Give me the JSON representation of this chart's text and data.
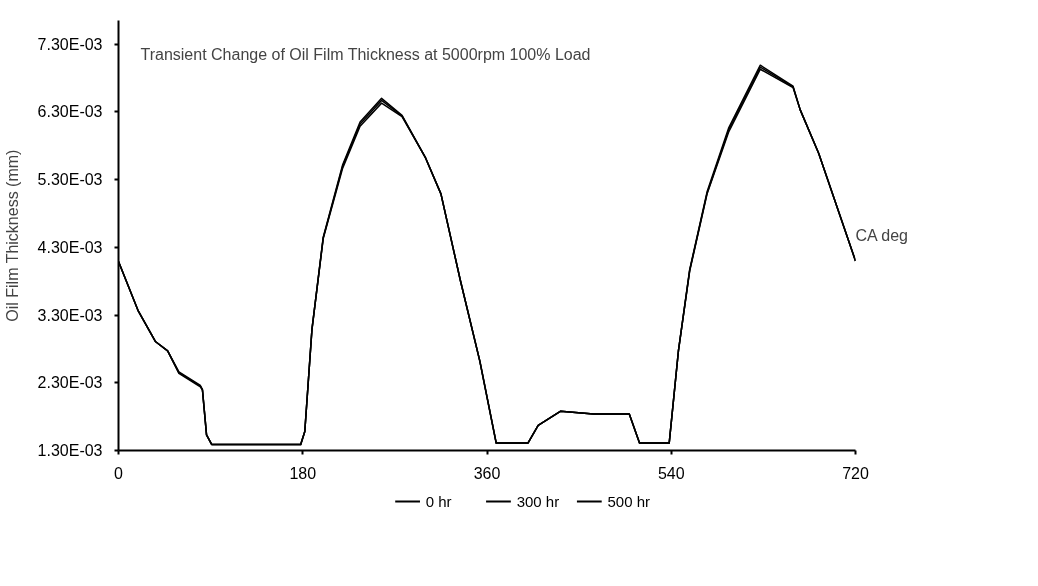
{
  "chart_data": {
    "type": "line",
    "title": "Transient Change of Oil Film Thickness at 5000rpm 100% Load",
    "xlabel": "CA deg",
    "ylabel": "Oil Film Thickness (mm)",
    "xlim": [
      0,
      720
    ],
    "xticks": [
      0,
      180,
      360,
      540,
      720
    ],
    "ylim": [
      0.0013,
      0.00765
    ],
    "yticks": [
      {
        "value": 0.0013,
        "label": "1.30E-03"
      },
      {
        "value": 0.0023,
        "label": "2.30E-03"
      },
      {
        "value": 0.0033,
        "label": "3.30E-03"
      },
      {
        "value": 0.0043,
        "label": "4.30E-03"
      },
      {
        "value": 0.0053,
        "label": "5.30E-03"
      },
      {
        "value": 0.0063,
        "label": "6.30E-03"
      },
      {
        "value": 0.0073,
        "label": "7.30E-03"
      }
    ],
    "grid": false,
    "legend": "bottom",
    "marker": "none",
    "line_style": "solid",
    "x": [
      0,
      19,
      36,
      48,
      59,
      80,
      82,
      86,
      91,
      178,
      182,
      189,
      200,
      219,
      236,
      257,
      277,
      300,
      315,
      334,
      353,
      369,
      400,
      410,
      432,
      464,
      499,
      509,
      538,
      547,
      558,
      575,
      596,
      627,
      659,
      666,
      684,
      720
    ],
    "series": [
      {
        "name": "0 hr",
        "color": "#000000",
        "values": [
          0.00409,
          0.00337,
          0.00291,
          0.00277,
          0.00246,
          0.00226,
          0.0022,
          0.00153,
          0.00139,
          0.00139,
          0.00158,
          0.00309,
          0.00445,
          0.00552,
          0.00615,
          0.0065,
          0.00625,
          0.00562,
          0.00509,
          0.00381,
          0.00262,
          0.00141,
          0.00141,
          0.00167,
          0.00188,
          0.00184,
          0.00184,
          0.00141,
          0.00141,
          0.00277,
          0.00397,
          0.00512,
          0.00606,
          0.00699,
          0.00668,
          0.00633,
          0.00569,
          0.0041
        ]
      },
      {
        "name": "300 hr",
        "color": "#000000",
        "values": [
          0.00409,
          0.00337,
          0.00291,
          0.00277,
          0.00245,
          0.00225,
          0.0022,
          0.00153,
          0.00139,
          0.00139,
          0.00158,
          0.00309,
          0.00444,
          0.0055,
          0.00612,
          0.00647,
          0.00624,
          0.00562,
          0.00509,
          0.00381,
          0.00262,
          0.00141,
          0.00141,
          0.00167,
          0.00188,
          0.00184,
          0.00184,
          0.00141,
          0.00141,
          0.00277,
          0.00396,
          0.0051,
          0.00603,
          0.00696,
          0.00667,
          0.00633,
          0.00569,
          0.0041
        ]
      },
      {
        "name": "500 hr",
        "color": "#000000",
        "values": [
          0.00409,
          0.00337,
          0.00291,
          0.00277,
          0.00244,
          0.00224,
          0.00219,
          0.00153,
          0.00139,
          0.00139,
          0.00158,
          0.00309,
          0.00443,
          0.00547,
          0.00609,
          0.00643,
          0.00623,
          0.00562,
          0.00509,
          0.00381,
          0.00262,
          0.00141,
          0.00141,
          0.00167,
          0.00188,
          0.00184,
          0.00184,
          0.00141,
          0.00141,
          0.00277,
          0.00395,
          0.00509,
          0.006,
          0.00693,
          0.00666,
          0.00633,
          0.00569,
          0.0041
        ]
      }
    ]
  }
}
